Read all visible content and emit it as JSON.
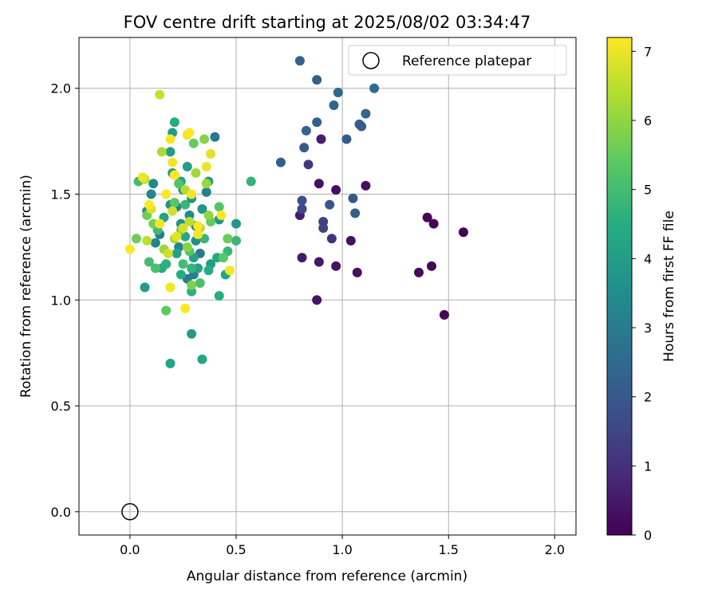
{
  "chart_data": {
    "type": "scatter",
    "title": "FOV centre drift starting at 2025/08/02 03:34:47",
    "xlabel": "Angular distance from reference (arcmin)",
    "ylabel": "Rotation from reference (arcmin)",
    "xlim": [
      -0.24,
      2.1
    ],
    "ylim": [
      -0.11,
      2.24
    ],
    "xticks": [
      0.0,
      0.5,
      1.0,
      1.5,
      2.0
    ],
    "xtick_labels": [
      "0.0",
      "0.5",
      "1.0",
      "1.5",
      "2.0"
    ],
    "yticks": [
      0.0,
      0.5,
      1.0,
      1.5,
      2.0
    ],
    "ytick_labels": [
      "0.0",
      "0.5",
      "1.0",
      "1.5",
      "2.0"
    ],
    "grid": true,
    "legend": {
      "placement": "top-right",
      "entries": [
        "Reference platepar"
      ]
    },
    "reference_point": {
      "x": 0.0,
      "y": 0.0,
      "marker": "open-circle"
    },
    "colorbar": {
      "label": "Hours from first FF file",
      "range": [
        0,
        7.2
      ],
      "ticks": [
        0,
        1,
        2,
        3,
        4,
        5,
        6,
        7
      ],
      "tick_labels": [
        "0",
        "1",
        "2",
        "3",
        "4",
        "5",
        "6",
        "7"
      ],
      "colormap": "viridis"
    },
    "points": [
      [
        1.57,
        1.32,
        0.0
      ],
      [
        1.48,
        0.93,
        0.1
      ],
      [
        1.43,
        1.36,
        0.1
      ],
      [
        1.42,
        1.16,
        0.15
      ],
      [
        1.4,
        1.39,
        0.1
      ],
      [
        1.36,
        1.13,
        0.2
      ],
      [
        1.07,
        1.13,
        0.3
      ],
      [
        1.04,
        1.28,
        0.35
      ],
      [
        0.97,
        1.16,
        0.4
      ],
      [
        0.88,
        1.0,
        0.4
      ],
      [
        0.89,
        1.18,
        0.45
      ],
      [
        0.81,
        1.2,
        0.5
      ],
      [
        0.97,
        1.52,
        0.3
      ],
      [
        0.89,
        1.55,
        0.35
      ],
      [
        1.11,
        1.54,
        0.3
      ],
      [
        0.9,
        1.76,
        0.6
      ],
      [
        0.8,
        1.4,
        0.6
      ],
      [
        0.95,
        1.29,
        1.0
      ],
      [
        0.84,
        1.64,
        1.2
      ],
      [
        0.91,
        1.37,
        1.4
      ],
      [
        0.91,
        1.34,
        1.5
      ],
      [
        0.81,
        1.43,
        1.6
      ],
      [
        0.81,
        1.47,
        1.8
      ],
      [
        0.94,
        1.45,
        1.9
      ],
      [
        1.06,
        1.41,
        2.2
      ],
      [
        1.05,
        1.48,
        2.0
      ],
      [
        1.02,
        1.76,
        2.1
      ],
      [
        0.71,
        1.65,
        2.2
      ],
      [
        0.82,
        1.72,
        2.0
      ],
      [
        0.83,
        1.8,
        2.3
      ],
      [
        0.88,
        1.84,
        2.2
      ],
      [
        1.08,
        1.83,
        2.3
      ],
      [
        1.09,
        1.82,
        2.1
      ],
      [
        1.11,
        1.88,
        2.4
      ],
      [
        0.96,
        1.92,
        2.4
      ],
      [
        0.98,
        1.98,
        2.5
      ],
      [
        1.15,
        2.0,
        2.5
      ],
      [
        0.88,
        2.04,
        2.2
      ],
      [
        0.8,
        2.13,
        2.3
      ],
      [
        0.27,
        1.1,
        3.0
      ],
      [
        0.3,
        1.12,
        3.1
      ],
      [
        0.33,
        1.22,
        3.0
      ],
      [
        0.31,
        1.35,
        3.2
      ],
      [
        0.36,
        1.51,
        3.1
      ],
      [
        0.4,
        1.77,
        2.9
      ],
      [
        0.23,
        1.25,
        3.3
      ],
      [
        0.1,
        1.5,
        3.3
      ],
      [
        0.12,
        1.27,
        3.2
      ],
      [
        0.08,
        1.42,
        3.5
      ],
      [
        0.22,
        1.44,
        3.1
      ],
      [
        0.28,
        1.4,
        3.4
      ],
      [
        0.14,
        1.31,
        3.0
      ],
      [
        0.25,
        1.52,
        3.5
      ],
      [
        0.19,
        1.45,
        3.6
      ],
      [
        0.24,
        1.36,
        3.6
      ],
      [
        0.31,
        1.28,
        3.5
      ],
      [
        0.29,
        1.48,
        3.7
      ],
      [
        0.11,
        1.55,
        3.4
      ],
      [
        0.34,
        1.43,
        3.8
      ],
      [
        0.2,
        1.6,
        4.0
      ],
      [
        0.07,
        1.06,
        3.9
      ],
      [
        0.29,
        0.84,
        3.9
      ],
      [
        0.5,
        1.36,
        3.8
      ],
      [
        0.42,
        1.38,
        3.8
      ],
      [
        0.27,
        1.63,
        4.0
      ],
      [
        0.37,
        1.56,
        4.0
      ],
      [
        0.38,
        1.17,
        4.0
      ],
      [
        0.24,
        1.56,
        4.1
      ],
      [
        0.16,
        1.39,
        4.2
      ],
      [
        0.22,
        1.22,
        4.1
      ],
      [
        0.26,
        1.3,
        4.3
      ],
      [
        0.41,
        1.2,
        4.4
      ],
      [
        0.34,
        0.72,
        4.3
      ],
      [
        0.19,
        0.7,
        4.2
      ],
      [
        0.19,
        1.7,
        4.0
      ],
      [
        0.2,
        1.79,
        3.9
      ],
      [
        0.3,
        1.2,
        4.1
      ],
      [
        0.32,
        1.15,
        4.2
      ],
      [
        0.15,
        1.15,
        4.4
      ],
      [
        0.21,
        1.84,
        4.4
      ],
      [
        0.45,
        1.12,
        4.2
      ],
      [
        0.42,
        1.02,
        4.5
      ],
      [
        0.37,
        1.14,
        4.5
      ],
      [
        0.29,
        1.04,
        4.6
      ],
      [
        0.24,
        1.12,
        4.5
      ],
      [
        0.17,
        1.17,
        4.6
      ],
      [
        0.35,
        1.29,
        4.8
      ],
      [
        0.29,
        1.15,
        4.7
      ],
      [
        0.57,
        1.56,
        4.7
      ],
      [
        0.5,
        1.28,
        4.8
      ],
      [
        0.46,
        1.23,
        4.8
      ],
      [
        0.26,
        1.45,
        4.8
      ],
      [
        0.13,
        1.33,
        4.9
      ],
      [
        0.04,
        1.56,
        5.0
      ],
      [
        0.09,
        1.18,
        5.0
      ],
      [
        0.12,
        1.15,
        5.1
      ],
      [
        0.25,
        1.17,
        5.0
      ],
      [
        0.33,
        1.08,
        5.1
      ],
      [
        0.23,
        1.55,
        5.2
      ],
      [
        0.28,
        1.23,
        5.3
      ],
      [
        0.21,
        1.46,
        5.3
      ],
      [
        0.42,
        1.44,
        5.3
      ],
      [
        0.44,
        1.2,
        5.4
      ],
      [
        0.17,
        0.95,
        5.4
      ],
      [
        0.3,
        1.74,
        5.5
      ],
      [
        0.38,
        1.37,
        5.5
      ],
      [
        0.03,
        1.29,
        5.6
      ],
      [
        0.08,
        1.4,
        5.6
      ],
      [
        0.11,
        1.36,
        5.7
      ],
      [
        0.46,
        1.29,
        5.6
      ],
      [
        0.29,
        1.07,
        5.8
      ],
      [
        0.24,
        1.33,
        5.8
      ],
      [
        0.27,
        1.25,
        5.9
      ],
      [
        0.35,
        1.76,
        5.9
      ],
      [
        0.21,
        1.59,
        6.0
      ],
      [
        0.37,
        1.4,
        6.0
      ],
      [
        0.16,
        1.24,
        6.1
      ],
      [
        0.36,
        1.55,
        6.1
      ],
      [
        0.31,
        1.6,
        6.2
      ],
      [
        0.15,
        1.7,
        6.3
      ],
      [
        0.21,
        1.29,
        6.3
      ],
      [
        0.26,
        1.52,
        6.4
      ],
      [
        0.33,
        1.34,
        6.4
      ],
      [
        0.28,
        1.37,
        6.5
      ],
      [
        0.08,
        1.28,
        6.5
      ],
      [
        0.14,
        1.97,
        6.6
      ],
      [
        0.07,
        1.57,
        6.6
      ],
      [
        0.2,
        1.42,
        6.7
      ],
      [
        0.18,
        1.22,
        6.7
      ],
      [
        0.25,
        1.34,
        6.8
      ],
      [
        0.1,
        1.43,
        6.8
      ],
      [
        0.38,
        1.69,
        6.9
      ],
      [
        0.22,
        1.3,
        6.9
      ],
      [
        0.27,
        1.78,
        7.0
      ],
      [
        0.36,
        1.63,
        7.0
      ],
      [
        0.14,
        1.36,
        7.1
      ],
      [
        0.06,
        1.58,
        7.0
      ],
      [
        0.32,
        1.31,
        7.1
      ],
      [
        0.19,
        1.06,
        7.1
      ],
      [
        0.47,
        1.14,
        7.1
      ],
      [
        0.0,
        1.24,
        7.2
      ],
      [
        0.26,
        0.96,
        7.2
      ],
      [
        0.43,
        1.4,
        7.2
      ],
      [
        0.19,
        1.76,
        7.2
      ],
      [
        0.09,
        1.45,
        7.2
      ],
      [
        0.29,
        1.5,
        7.1
      ],
      [
        0.17,
        1.5,
        7.2
      ],
      [
        0.21,
        1.59,
        7.2
      ],
      [
        0.28,
        1.79,
        7.2
      ],
      [
        0.2,
        1.65,
        7.1
      ],
      [
        0.32,
        1.35,
        7.2
      ]
    ]
  }
}
